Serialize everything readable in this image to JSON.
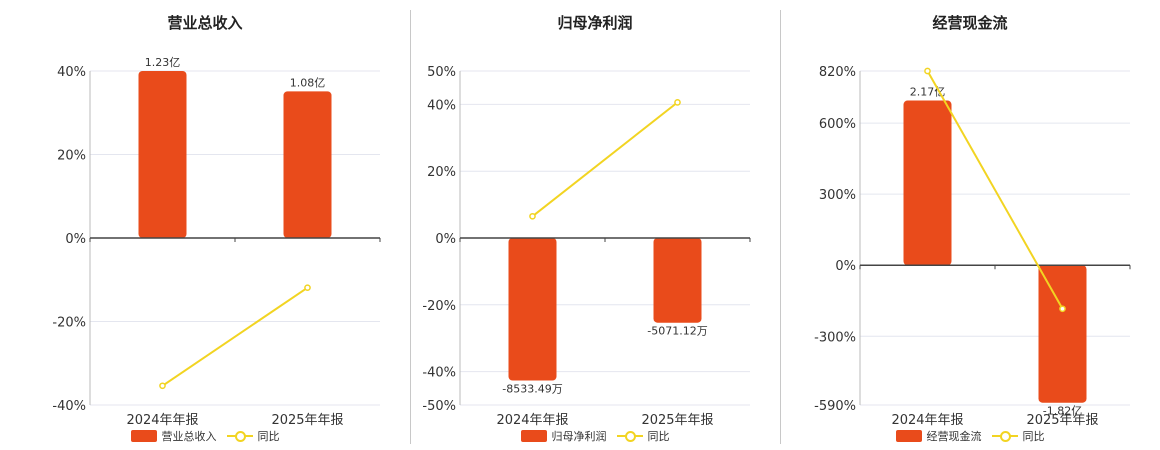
{
  "colors": {
    "bar": "#e94b1b",
    "line": "#f2d422",
    "grid": "#e4e6ef",
    "axis": "#444444",
    "tick_text": "#333333"
  },
  "legend": {
    "line_label": "同比"
  },
  "chart_data": [
    {
      "type": "bar",
      "title": "营业总收入",
      "categories": [
        "2024年年报",
        "2025年年报"
      ],
      "bar_labels": [
        "1.23亿",
        "1.08亿"
      ],
      "bar_values": [
        1.23,
        1.08
      ],
      "bar_ylim": [
        -1.23,
        1.23
      ],
      "bar_legend": "营业总收入",
      "line_values": [
        -35.4,
        -11.9
      ],
      "ylim": [
        -40,
        40
      ],
      "yticks": [
        -40,
        -20,
        0,
        20,
        40
      ],
      "ytick_labels": [
        "-40%",
        "-20%",
        "0%",
        "20%",
        "40%"
      ]
    },
    {
      "type": "bar",
      "title": "归母净利润",
      "categories": [
        "2024年年报",
        "2025年年报"
      ],
      "bar_labels": [
        "-8533.49万",
        "-5071.12万"
      ],
      "bar_values": [
        -8533.49,
        -5071.12
      ],
      "bar_ylim": [
        -10000,
        10000
      ],
      "bar_legend": "归母净利润",
      "line_values": [
        6.5,
        40.6
      ],
      "ylim": [
        -50,
        50
      ],
      "yticks": [
        -50,
        -40,
        -20,
        0,
        20,
        40,
        50
      ],
      "ytick_labels": [
        "-50%",
        "-40%",
        "-20%",
        "0%",
        "20%",
        "40%",
        "50%"
      ]
    },
    {
      "type": "bar",
      "title": "经营现金流",
      "categories": [
        "2024年年报",
        "2025年年报"
      ],
      "bar_labels": [
        "2.17亿",
        "-1.82亿"
      ],
      "bar_values": [
        2.17,
        -1.82
      ],
      "bar_ylim": [
        -1.85,
        2.56
      ],
      "bar_legend": "经营现金流",
      "line_values": [
        820,
        -183.9
      ],
      "ylim": [
        -590,
        820
      ],
      "yticks": [
        -590,
        -300,
        0,
        300,
        600,
        820
      ],
      "ytick_labels": [
        "-590%",
        "-300%",
        "0%",
        "300%",
        "600%",
        "820%"
      ]
    }
  ]
}
